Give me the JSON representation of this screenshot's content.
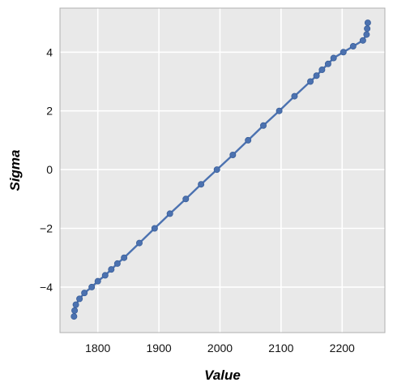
{
  "chart_data": {
    "type": "scatter",
    "xlabel": "Value",
    "ylabel": "Sigma",
    "xlim": [
      1738,
      2270
    ],
    "ylim": [
      -5.55,
      5.5
    ],
    "xticks": [
      1800,
      1900,
      2000,
      2100,
      2200
    ],
    "yticks": [
      -4,
      -2,
      0,
      2,
      4
    ],
    "xtick_labels": [
      "1800",
      "1900",
      "2000",
      "2100",
      "2200"
    ],
    "ytick_labels": [
      "−4",
      "−2",
      "0",
      "2",
      "4"
    ],
    "grid": true,
    "colors": {
      "background": "#e9e9e9",
      "grid": "#ffffff",
      "series": "#4c72b0",
      "frame": "#b0b0b0"
    },
    "series": [
      {
        "x": [
          1761,
          1762,
          1764,
          1770,
          1778,
          1790,
          1800,
          1812,
          1822,
          1832,
          1843,
          1868,
          1893,
          1918,
          1944,
          1969,
          1995,
          2021,
          2046,
          2071,
          2097,
          2122,
          2148,
          2158,
          2167,
          2177,
          2186,
          2202,
          2218,
          2234,
          2240,
          2241,
          2242
        ],
        "y": [
          -5.0,
          -4.8,
          -4.6,
          -4.4,
          -4.2,
          -4.0,
          -3.8,
          -3.6,
          -3.4,
          -3.2,
          -3.0,
          -2.5,
          -2.0,
          -1.5,
          -1.0,
          -0.5,
          0.0,
          0.5,
          1.0,
          1.5,
          2.0,
          2.5,
          3.0,
          3.2,
          3.4,
          3.6,
          3.8,
          4.0,
          4.2,
          4.4,
          4.6,
          4.8,
          5.0
        ]
      }
    ]
  }
}
